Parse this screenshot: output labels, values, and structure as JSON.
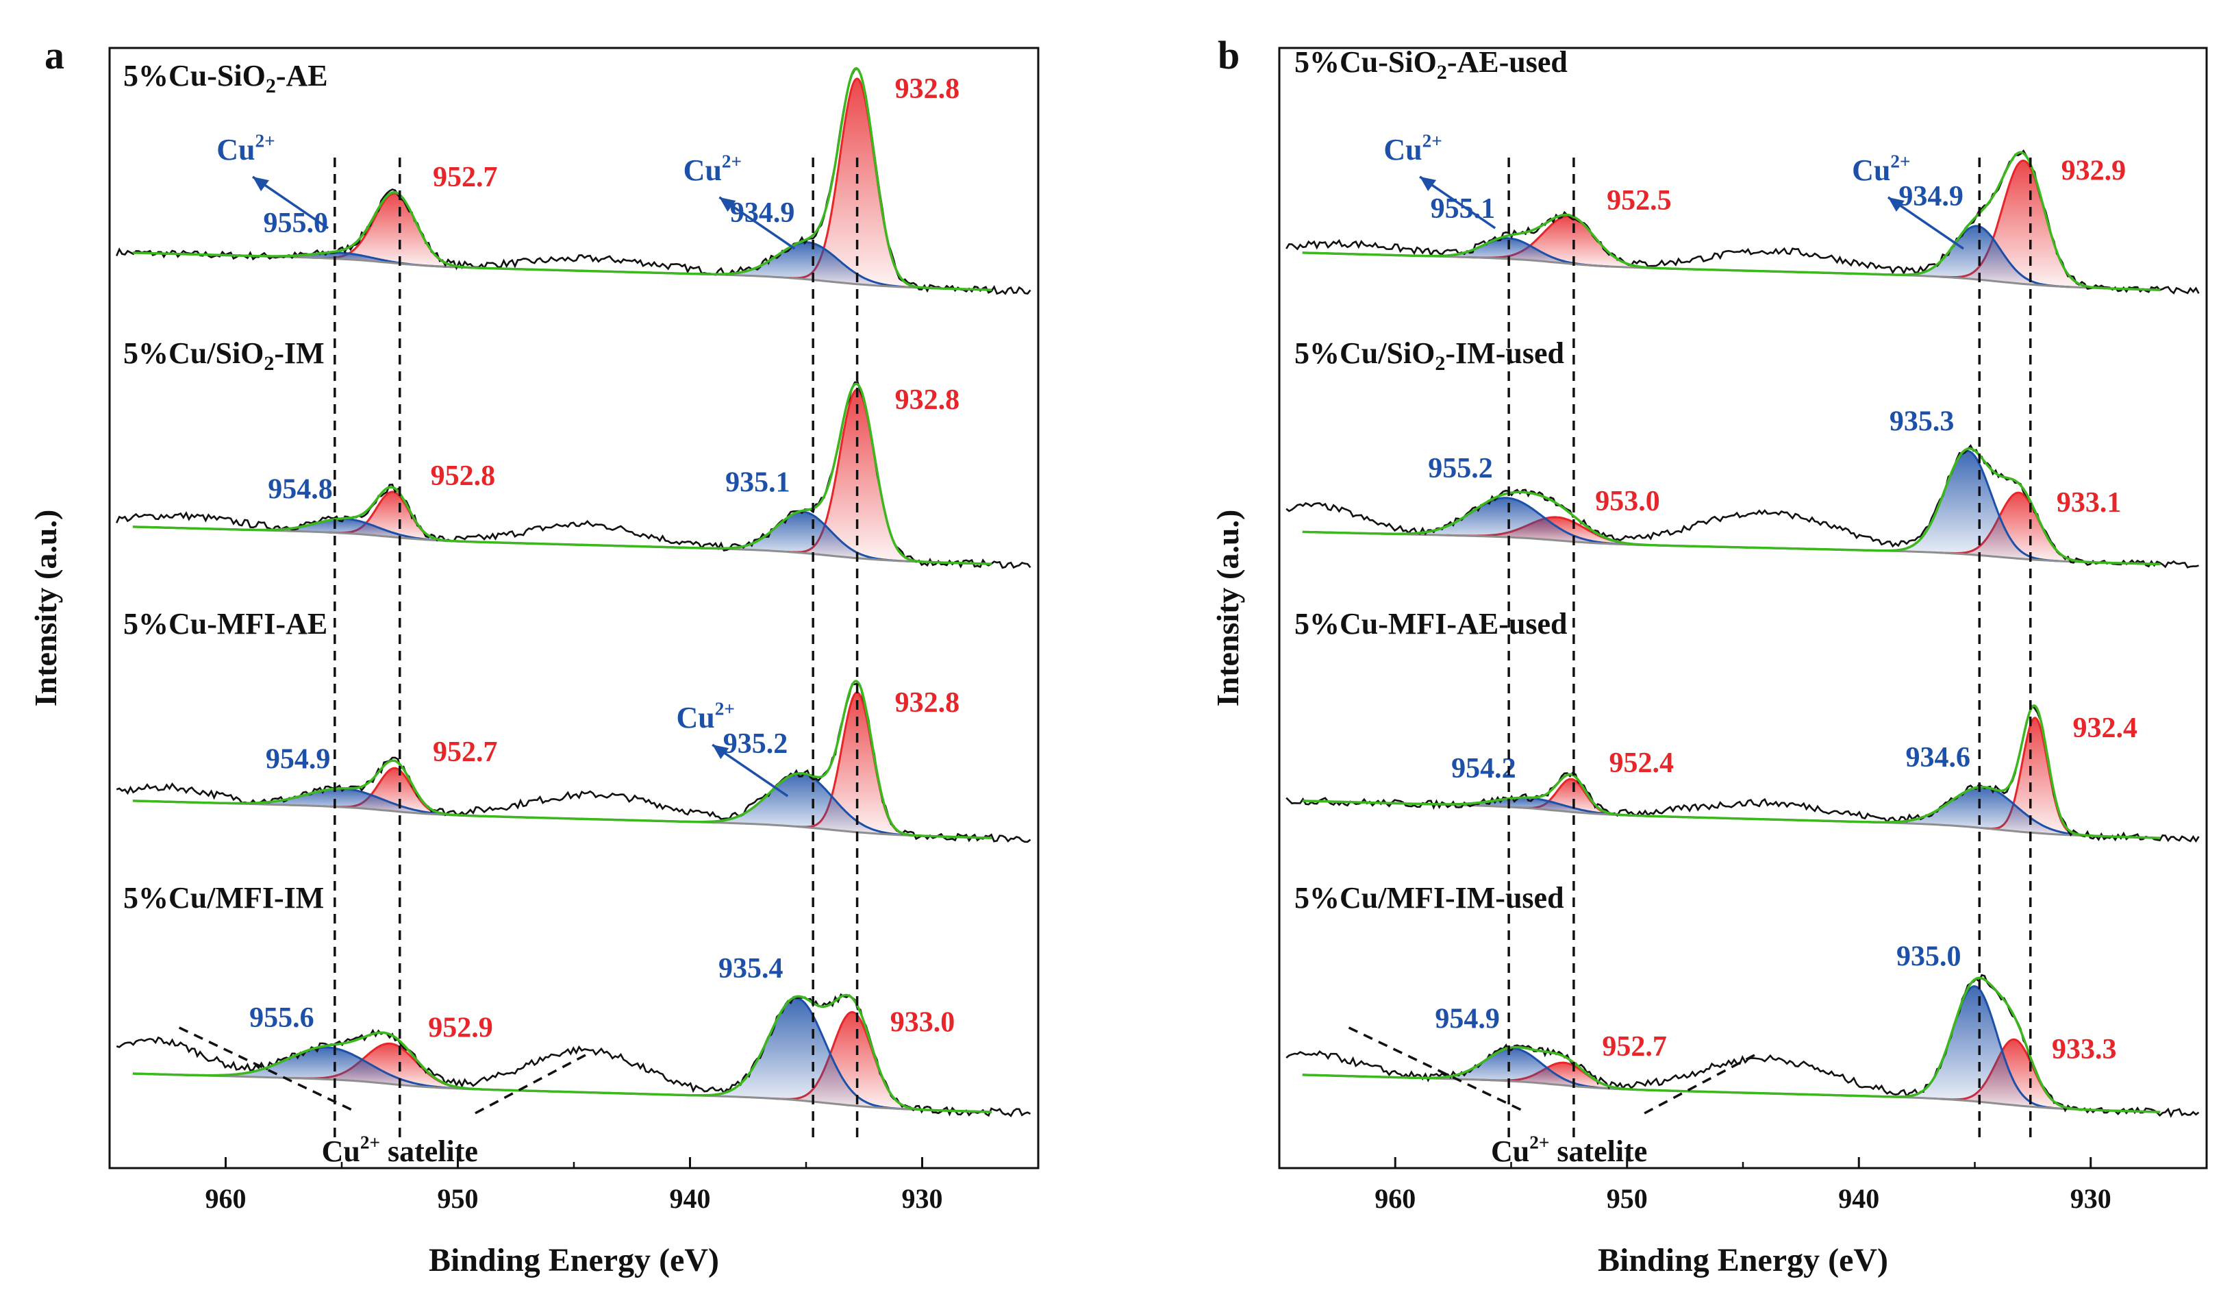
{
  "colors": {
    "raw": "#111111",
    "envelope": "#3cb81e",
    "baseline": "#8e8e8e",
    "cu1": "#e8262a",
    "cu2": "#1d50a8",
    "label_red": "#e8262a",
    "label_blue": "#1d50a8"
  },
  "chart_data": [
    {
      "panel": "a",
      "type": "line",
      "xlabel": "Binding Energy (eV)",
      "ylabel": "Intensity (a.u.)",
      "xlim": [
        965,
        925
      ],
      "xticks": [
        960,
        950,
        940,
        930
      ],
      "ref_lines": [
        955.3,
        952.5,
        934.7,
        932.8
      ],
      "satellite_label": "Cu²⁺ satelite",
      "spectra": [
        {
          "sample": "5%Cu-SiO₂-AE",
          "peaks": [
            {
              "center": 932.8,
              "height": 1.0,
              "width": 0.75,
              "species": "Cu+",
              "label": "932.8"
            },
            {
              "center": 934.9,
              "height": 0.18,
              "width": 1.3,
              "species": "Cu2+",
              "label": "934.9"
            },
            {
              "center": 952.7,
              "height": 0.34,
              "width": 0.9,
              "species": "Cu+",
              "label": "952.7"
            },
            {
              "center": 955.0,
              "height": 0.03,
              "width": 1.2,
              "species": "Cu2+",
              "label": "955.0"
            }
          ],
          "sat": [
            {
              "center": 944.0,
              "height": 0.06,
              "width": 3.0
            }
          ],
          "cu2_annotations": [
            "Cu²⁺",
            "Cu²⁺"
          ]
        },
        {
          "sample": "5%Cu/SiO₂-IM",
          "peaks": [
            {
              "center": 932.8,
              "height": 0.82,
              "width": 0.75,
              "species": "Cu+",
              "label": "932.8"
            },
            {
              "center": 935.1,
              "height": 0.2,
              "width": 1.15,
              "species": "Cu2+",
              "label": "935.1"
            },
            {
              "center": 952.8,
              "height": 0.22,
              "width": 0.7,
              "species": "Cu+",
              "label": "952.8"
            },
            {
              "center": 954.8,
              "height": 0.07,
              "width": 1.3,
              "species": "Cu2+",
              "label": "954.8"
            }
          ],
          "sat": [
            {
              "center": 944.5,
              "height": 0.1,
              "width": 2.5
            },
            {
              "center": 962.0,
              "height": 0.06,
              "width": 2.5
            }
          ],
          "cu2_annotations": []
        },
        {
          "sample": "5%Cu-MFI-AE",
          "peaks": [
            {
              "center": 932.8,
              "height": 0.68,
              "width": 0.65,
              "species": "Cu+",
              "label": "932.8"
            },
            {
              "center": 935.2,
              "height": 0.26,
              "width": 1.35,
              "species": "Cu2+",
              "label": "935.2"
            },
            {
              "center": 952.7,
              "height": 0.21,
              "width": 0.7,
              "species": "Cu+",
              "label": "952.7"
            },
            {
              "center": 954.9,
              "height": 0.09,
              "width": 1.6,
              "species": "Cu2+",
              "label": "954.9"
            }
          ],
          "sat": [
            {
              "center": 944.0,
              "height": 0.12,
              "width": 3.0
            },
            {
              "center": 962.5,
              "height": 0.07,
              "width": 2.0
            }
          ],
          "cu2_annotations": [
            "Cu²⁺"
          ]
        },
        {
          "sample": "5%Cu/MFI-IM",
          "peaks": [
            {
              "center": 933.0,
              "height": 0.44,
              "width": 0.85,
              "species": "Cu+",
              "label": "933.0"
            },
            {
              "center": 935.4,
              "height": 0.48,
              "width": 1.2,
              "species": "Cu2+",
              "label": "935.4"
            },
            {
              "center": 952.9,
              "height": 0.19,
              "width": 1.1,
              "species": "Cu+",
              "label": "952.9"
            },
            {
              "center": 955.6,
              "height": 0.15,
              "width": 1.7,
              "species": "Cu2+",
              "label": "955.6"
            }
          ],
          "sat": [
            {
              "center": 944.5,
              "height": 0.2,
              "width": 2.5
            },
            {
              "center": 963.0,
              "height": 0.16,
              "width": 2.0
            }
          ],
          "cu2_annotations": []
        }
      ]
    },
    {
      "panel": "b",
      "type": "line",
      "xlabel": "Binding Energy (eV)",
      "ylabel": "Intensity (a.u.)",
      "xlim": [
        965,
        925
      ],
      "xticks": [
        960,
        950,
        940,
        930
      ],
      "ref_lines": [
        955.1,
        952.3,
        934.8,
        932.6
      ],
      "satellite_label": "Cu²⁺ satelite",
      "spectra": [
        {
          "sample": "5%Cu-SiO₂-AE-used",
          "peaks": [
            {
              "center": 932.9,
              "height": 0.6,
              "width": 0.9,
              "species": "Cu+",
              "label": "932.9"
            },
            {
              "center": 934.9,
              "height": 0.26,
              "width": 1.0,
              "species": "Cu2+",
              "label": "934.9"
            },
            {
              "center": 952.5,
              "height": 0.23,
              "width": 1.1,
              "species": "Cu+",
              "label": "952.5"
            },
            {
              "center": 955.1,
              "height": 0.1,
              "width": 1.1,
              "species": "Cu2+",
              "label": "955.1"
            }
          ],
          "sat": [
            {
              "center": 943.5,
              "height": 0.1,
              "width": 3.0
            },
            {
              "center": 962.0,
              "height": 0.05,
              "width": 2.5
            }
          ],
          "cu2_annotations": [
            "Cu²⁺",
            "Cu²⁺"
          ]
        },
        {
          "sample": "5%Cu/SiO₂-IM-used",
          "peaks": [
            {
              "center": 933.1,
              "height": 0.37,
              "width": 0.85,
              "species": "Cu+",
              "label": "933.1"
            },
            {
              "center": 935.3,
              "height": 0.58,
              "width": 1.0,
              "species": "Cu2+",
              "label": "935.3"
            },
            {
              "center": 953.0,
              "height": 0.13,
              "width": 1.2,
              "species": "Cu+",
              "label": "953.0"
            },
            {
              "center": 955.2,
              "height": 0.22,
              "width": 1.5,
              "species": "Cu2+",
              "label": "955.2"
            }
          ],
          "sat": [
            {
              "center": 944.0,
              "height": 0.2,
              "width": 3.0
            },
            {
              "center": 963.5,
              "height": 0.15,
              "width": 2.0
            }
          ],
          "cu2_annotations": []
        },
        {
          "sample": "5%Cu-MFI-AE-used",
          "peaks": [
            {
              "center": 932.4,
              "height": 0.56,
              "width": 0.55,
              "species": "Cu+",
              "label": "932.4"
            },
            {
              "center": 934.6,
              "height": 0.2,
              "width": 1.4,
              "species": "Cu2+",
              "label": "934.6"
            },
            {
              "center": 952.4,
              "height": 0.16,
              "width": 0.6,
              "species": "Cu+",
              "label": "952.4"
            },
            {
              "center": 954.2,
              "height": 0.05,
              "width": 1.4,
              "species": "Cu2+",
              "label": "954.2"
            }
          ],
          "sat": [
            {
              "center": 944.0,
              "height": 0.08,
              "width": 3.0
            }
          ],
          "cu2_annotations": []
        },
        {
          "sample": "5%Cu/MFI-IM-used",
          "peaks": [
            {
              "center": 933.3,
              "height": 0.32,
              "width": 0.8,
              "species": "Cu+",
              "label": "933.3"
            },
            {
              "center": 935.0,
              "height": 0.56,
              "width": 0.95,
              "species": "Cu2+",
              "label": "935.0"
            },
            {
              "center": 952.7,
              "height": 0.11,
              "width": 0.9,
              "species": "Cu+",
              "label": "952.7"
            },
            {
              "center": 954.9,
              "height": 0.16,
              "width": 1.2,
              "species": "Cu2+",
              "label": "954.9"
            }
          ],
          "sat": [
            {
              "center": 944.0,
              "height": 0.17,
              "width": 2.8
            },
            {
              "center": 963.5,
              "height": 0.1,
              "width": 2.0
            }
          ],
          "cu2_annotations": []
        }
      ]
    }
  ]
}
